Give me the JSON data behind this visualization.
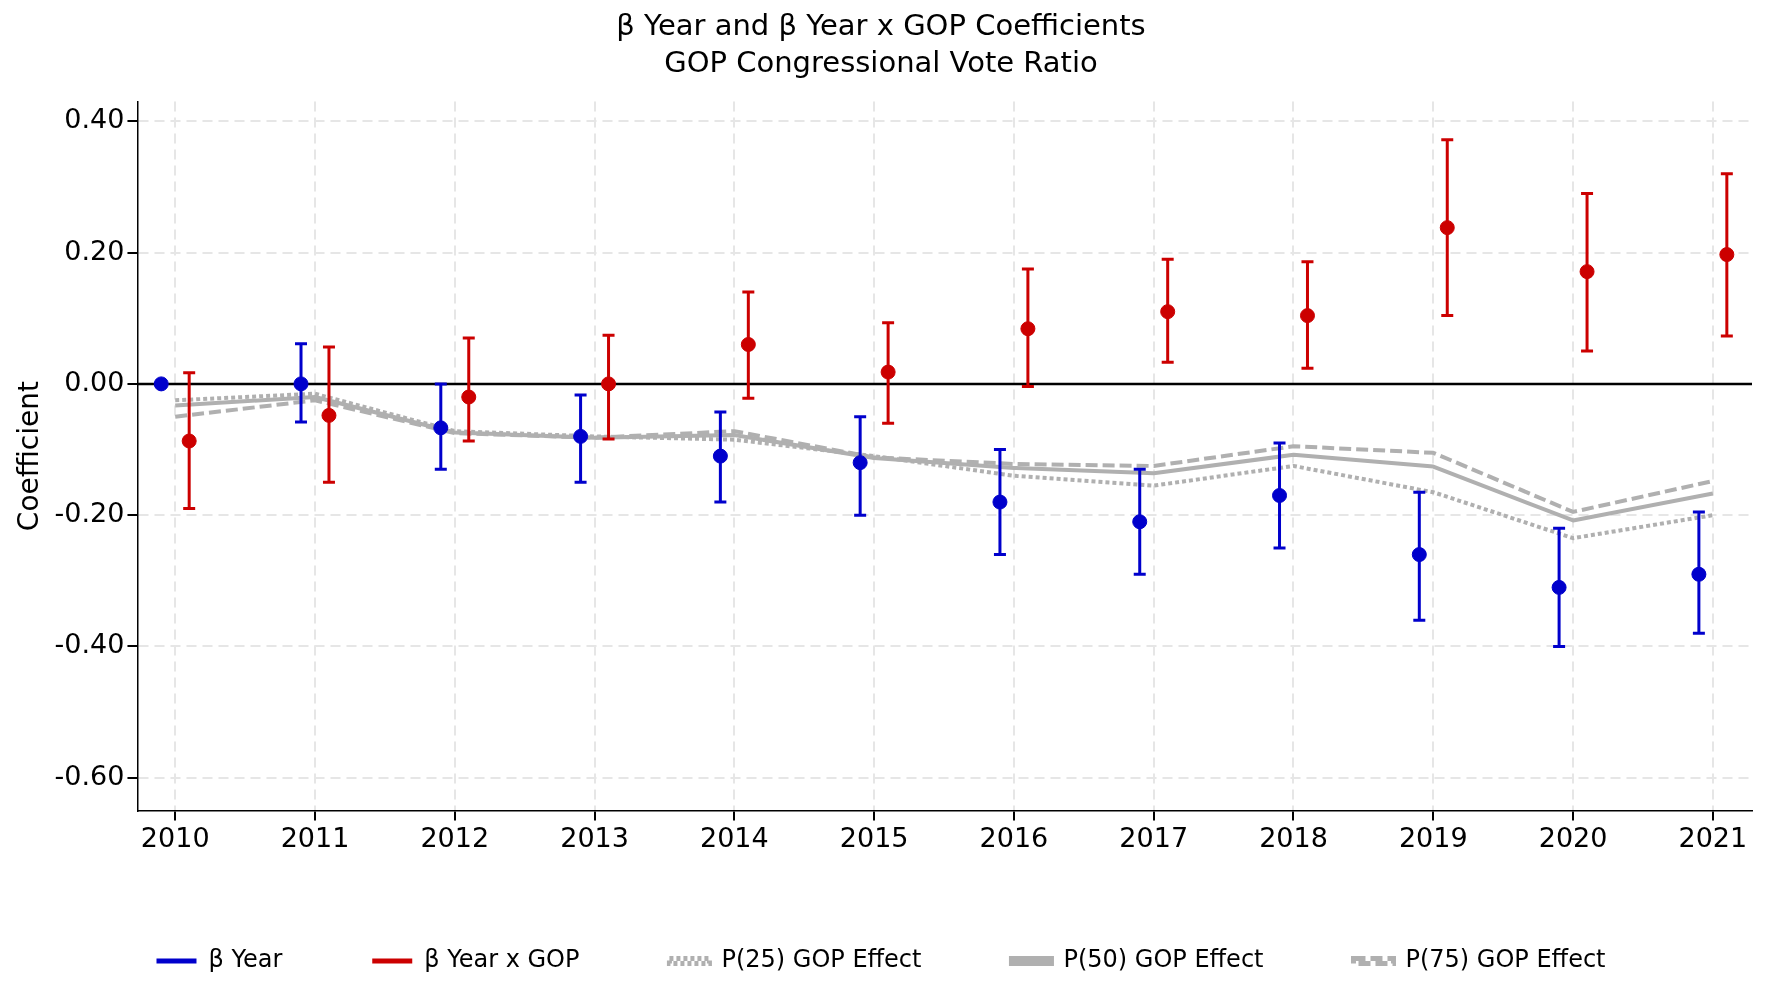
{
  "chart_data": {
    "type": "scatter",
    "title": "β Year and β Year x GOP Coefficients",
    "subtitle": "GOP Congressional Vote Ratio",
    "ylabel": "Coefficient",
    "xlim": [
      2009.73,
      2021.28
    ],
    "xticks": [
      2010,
      2011,
      2012,
      2013,
      2014,
      2015,
      2016,
      2017,
      2018,
      2019,
      2020,
      2021
    ],
    "ylim": [
      -0.65,
      0.43
    ],
    "yticks": [
      {
        "value": -0.6,
        "label": "-0.60"
      },
      {
        "value": -0.4,
        "label": "-0.40"
      },
      {
        "value": -0.2,
        "label": "-0.20"
      },
      {
        "value": 0,
        "label": "0.00"
      },
      {
        "value": 0.2,
        "label": "0.20"
      },
      {
        "value": 0.4,
        "label": "0.40"
      }
    ],
    "grid": true,
    "legend": "bottom",
    "ref_lines": [
      {
        "axis": "y",
        "value": 0,
        "color": "#000000",
        "line_style": "solid"
      }
    ],
    "series": [
      {
        "name": "β Year",
        "type": "scatter",
        "marker": "circle",
        "color": "#0000cc",
        "x": [
          2009.9,
          2010.9,
          2011.9,
          2012.9,
          2013.9,
          2014.9,
          2015.9,
          2016.9,
          2017.9,
          2018.9,
          2019.9,
          2020.9
        ],
        "values": [
          0,
          0,
          -0.067,
          -0.08,
          -0.11,
          -0.12,
          -0.18,
          -0.21,
          -0.17,
          -0.26,
          -0.31,
          -0.29
        ],
        "errors": [
          null,
          [
            -0.058,
            0.061
          ],
          [
            -0.13,
            0.0
          ],
          [
            -0.15,
            -0.017
          ],
          [
            -0.18,
            -0.043
          ],
          [
            -0.2,
            -0.05
          ],
          [
            -0.26,
            -0.1
          ],
          [
            -0.29,
            -0.13
          ],
          [
            -0.25,
            -0.09
          ],
          [
            -0.36,
            -0.165
          ],
          [
            -0.4,
            -0.22
          ],
          [
            -0.38,
            -0.195
          ]
        ]
      },
      {
        "name": "β Year x GOP",
        "type": "scatter",
        "marker": "circle",
        "color": "#cc0000",
        "x": [
          2010.1,
          2011.1,
          2012.1,
          2013.1,
          2014.1,
          2015.1,
          2016.1,
          2017.1,
          2018.1,
          2019.1,
          2020.1,
          2021.1
        ],
        "values": [
          -0.087,
          -0.048,
          -0.02,
          0,
          0.06,
          0.018,
          0.084,
          0.11,
          0.104,
          0.238,
          0.171,
          0.197
        ],
        "errors": [
          [
            -0.19,
            0.017
          ],
          [
            -0.15,
            0.056
          ],
          [
            -0.087,
            0.07
          ],
          [
            -0.084,
            0.074
          ],
          [
            -0.022,
            0.14
          ],
          [
            -0.06,
            0.093
          ],
          [
            -0.004,
            0.175
          ],
          [
            0.033,
            0.19
          ],
          [
            0.024,
            0.186
          ],
          [
            0.104,
            0.372
          ],
          [
            0.05,
            0.29
          ],
          [
            0.073,
            0.32
          ]
        ]
      },
      {
        "name": "P(25) GOP Effect",
        "type": "line",
        "marker": "none",
        "line_style": "dotted",
        "color": "#b0b0b0",
        "x": [
          2010,
          2011,
          2012,
          2013,
          2014,
          2015,
          2016,
          2017,
          2018,
          2019,
          2020,
          2021
        ],
        "values": [
          -0.025,
          -0.015,
          -0.072,
          -0.08,
          -0.085,
          -0.11,
          -0.14,
          -0.155,
          -0.125,
          -0.165,
          -0.235,
          -0.2
        ]
      },
      {
        "name": "P(50) GOP Effect",
        "type": "line",
        "marker": "none",
        "line_style": "solid",
        "color": "#b0b0b0",
        "x": [
          2010,
          2011,
          2012,
          2013,
          2014,
          2015,
          2016,
          2017,
          2018,
          2019,
          2020,
          2021
        ],
        "values": [
          -0.033,
          -0.02,
          -0.074,
          -0.082,
          -0.078,
          -0.113,
          -0.128,
          -0.136,
          -0.108,
          -0.126,
          -0.208,
          -0.167
        ]
      },
      {
        "name": "P(75) GOP Effect",
        "type": "line",
        "marker": "none",
        "line_style": "dashed",
        "color": "#b0b0b0",
        "x": [
          2010,
          2011,
          2012,
          2013,
          2014,
          2015,
          2016,
          2017,
          2018,
          2019,
          2020,
          2021
        ],
        "values": [
          -0.05,
          -0.025,
          -0.075,
          -0.082,
          -0.072,
          -0.112,
          -0.122,
          -0.125,
          -0.095,
          -0.105,
          -0.195,
          -0.148
        ]
      }
    ]
  }
}
